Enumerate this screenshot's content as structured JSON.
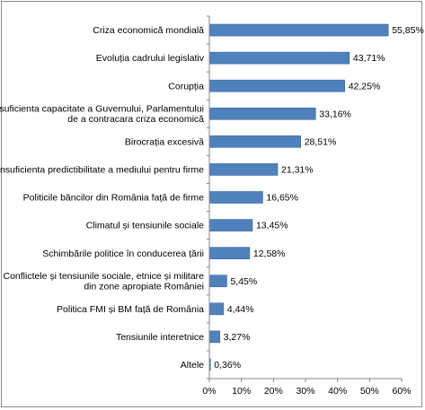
{
  "chart_data": {
    "type": "bar",
    "orientation": "horizontal",
    "title": "",
    "xlabel": "",
    "ylabel": "",
    "xlim": [
      0,
      60
    ],
    "x_ticks": [
      "0%",
      "10%",
      "20%",
      "30%",
      "40%",
      "50%",
      "60%"
    ],
    "grid": false,
    "legend": "none",
    "bar_color": "#4F81BD",
    "categories": [
      [
        "Criza economică mondială"
      ],
      [
        "Evoluția cadrului legislativ"
      ],
      [
        "Corupția"
      ],
      [
        "Insuficienta  capacitate a Guvernului, Parlamentului",
        "de a contracara criza economică"
      ],
      [
        "Birocrația excesivă"
      ],
      [
        "Insuficienta predictibilitate a mediului pentru firme"
      ],
      [
        "Politicile băncilor din România față de firme"
      ],
      [
        "Climatul și tensiunile sociale"
      ],
      [
        "Schimbările politice în conducerea țării"
      ],
      [
        "Conflictele și tensiunile sociale, etnice și militare",
        "din zone apropiate României"
      ],
      [
        "Politica FMI și BM față de România"
      ],
      [
        "Tensiunile interetnice"
      ],
      [
        "Altele"
      ]
    ],
    "values": [
      55.85,
      43.71,
      42.25,
      33.16,
      28.51,
      21.31,
      16.65,
      13.45,
      12.58,
      5.45,
      4.44,
      3.27,
      0.36
    ],
    "value_labels": [
      "55,85%",
      "43,71%",
      "42,25%",
      "33,16%",
      "28,51%",
      "21,31%",
      "16,65%",
      "13,45%",
      "12,58%",
      "5,45%",
      "4,44%",
      "3,27%",
      "0,36%"
    ]
  }
}
